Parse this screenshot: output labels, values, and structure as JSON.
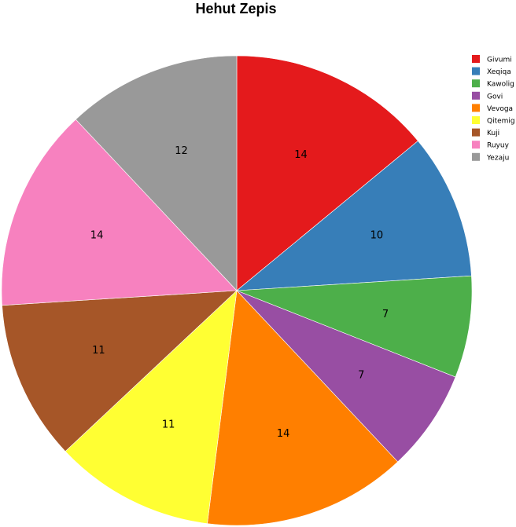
{
  "chart_data": {
    "type": "pie",
    "title": "Hehut Zepis",
    "categories": [
      "Givumi",
      "Xeqiqa",
      "Kawolig",
      "Govi",
      "Vevoga",
      "Qitemig",
      "Kuji",
      "Ruyuy",
      "Yezaju"
    ],
    "values": [
      14,
      10,
      7,
      7,
      14,
      11,
      11,
      14,
      12
    ],
    "colors": [
      "#e41a1c",
      "#377eb8",
      "#4daf4a",
      "#984ea3",
      "#ff7f00",
      "#ffff33",
      "#a65628",
      "#f781bf",
      "#999999"
    ],
    "legend_position": "top-right",
    "data_labels": [
      "14",
      "10",
      "7",
      "7",
      "14",
      "11",
      "11",
      "14",
      "12"
    ]
  }
}
